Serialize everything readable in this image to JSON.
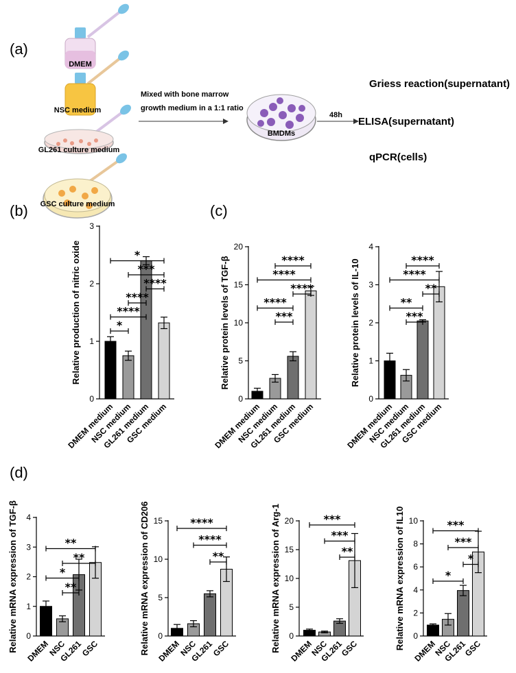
{
  "panels": {
    "a": "(a)",
    "b": "(b)",
    "c": "(c)",
    "d": "(d)"
  },
  "schematic": {
    "media": [
      "DMEM",
      "NSC medium",
      "GL261 culture medium",
      "GSC culture medium"
    ],
    "mix_line1": "Mixed with bone marrow",
    "mix_line2": "growth medium in a 1:1 ratio",
    "cells": "BMDMs",
    "time": "48h",
    "outputs": [
      "Griess reaction(supernatant)",
      "ELISA(supernatant)",
      "qPCR(cells)"
    ]
  },
  "colors": {
    "bar1": "#000000",
    "bar2": "#9a9a9a",
    "bar3": "#6f6f6f",
    "bar4": "#d4d4d4"
  },
  "chart_data": [
    {
      "type": "bar",
      "panel": "b",
      "categories": [
        "DMEM medium",
        "NSC medium",
        "GL261 medium",
        "GSC medium"
      ],
      "values": [
        1.0,
        0.75,
        2.4,
        1.32
      ],
      "errors": [
        0.08,
        0.08,
        0.07,
        0.1
      ],
      "ylabel": "Relative production of nitric oxide",
      "ylim": [
        0,
        3
      ],
      "yticks": [
        "0",
        "1",
        "2",
        "3"
      ],
      "significance": [
        {
          "a": 0,
          "b": 1,
          "label": "*"
        },
        {
          "a": 0,
          "b": 2,
          "label": "****"
        },
        {
          "a": 1,
          "b": 2,
          "label": "****"
        },
        {
          "a": 2,
          "b": 3,
          "label": "****"
        },
        {
          "a": 1,
          "b": 3,
          "label": "***"
        },
        {
          "a": 0,
          "b": 3,
          "label": "*"
        }
      ]
    },
    {
      "type": "bar",
      "panel": "c",
      "categories": [
        "DMEM medium",
        "NSC medium",
        "GL261 medium",
        "GSC medium"
      ],
      "values": [
        1.0,
        2.7,
        5.6,
        14.2
      ],
      "errors": [
        0.4,
        0.5,
        0.6,
        0.6
      ],
      "ylabel": "Relative protein levels of TGF-β",
      "ylim": [
        0,
        20
      ],
      "yticks": [
        "0",
        "5",
        "10",
        "15",
        "20"
      ],
      "significance": [
        {
          "a": 1,
          "b": 2,
          "label": "***"
        },
        {
          "a": 0,
          "b": 2,
          "label": "****"
        },
        {
          "a": 2,
          "b": 3,
          "label": "****"
        },
        {
          "a": 0,
          "b": 3,
          "label": "****"
        },
        {
          "a": 1,
          "b": 3,
          "label": "****"
        }
      ]
    },
    {
      "type": "bar",
      "panel": "c",
      "categories": [
        "DMEM medium",
        "NSC medium",
        "GL261 medium",
        "GSC medium"
      ],
      "values": [
        1.0,
        0.62,
        2.05,
        2.95
      ],
      "errors": [
        0.2,
        0.15,
        0.03,
        0.4
      ],
      "ylabel": "Relative protein levels of IL-10",
      "ylim": [
        0,
        4
      ],
      "yticks": [
        "0",
        "1",
        "2",
        "3",
        "4"
      ],
      "significance": [
        {
          "a": 1,
          "b": 2,
          "label": "***"
        },
        {
          "a": 0,
          "b": 2,
          "label": "**"
        },
        {
          "a": 2,
          "b": 3,
          "label": "**"
        },
        {
          "a": 0,
          "b": 3,
          "label": "****"
        },
        {
          "a": 1,
          "b": 3,
          "label": "****"
        }
      ]
    },
    {
      "type": "bar",
      "panel": "d",
      "categories": [
        "DMEM",
        "NSC",
        "GL261",
        "GSC"
      ],
      "values": [
        1.0,
        0.58,
        2.07,
        2.48
      ],
      "errors": [
        0.18,
        0.1,
        0.52,
        0.53
      ],
      "ylabel": "Relative mRNA expression of TGF-β",
      "ylim": [
        0,
        4
      ],
      "yticks": [
        "0",
        "1",
        "2",
        "3",
        "4"
      ],
      "significance": [
        {
          "a": 1,
          "b": 2,
          "label": "**"
        },
        {
          "a": 0,
          "b": 2,
          "label": "*"
        },
        {
          "a": 1,
          "b": 3,
          "label": "**"
        },
        {
          "a": 0,
          "b": 3,
          "label": "**"
        }
      ]
    },
    {
      "type": "bar",
      "panel": "d",
      "categories": [
        "DMEM",
        "NSC",
        "GL261",
        "GSC"
      ],
      "values": [
        1.0,
        1.6,
        5.5,
        8.7
      ],
      "errors": [
        0.5,
        0.4,
        0.4,
        1.6
      ],
      "ylabel": "Relative mRNA expression of CD206",
      "ylim": [
        0,
        15
      ],
      "yticks": [
        "0",
        "5",
        "10",
        "15"
      ],
      "significance": [
        {
          "a": 2,
          "b": 3,
          "label": "**"
        },
        {
          "a": 1,
          "b": 3,
          "label": "****"
        },
        {
          "a": 0,
          "b": 3,
          "label": "****"
        }
      ]
    },
    {
      "type": "bar",
      "panel": "d",
      "categories": [
        "DMEM",
        "NSC",
        "GL261",
        "GSC"
      ],
      "values": [
        1.0,
        0.7,
        2.6,
        13.1
      ],
      "errors": [
        0.2,
        0.15,
        0.4,
        4.7
      ],
      "ylabel": "Relative mRNA expression of Arg-1",
      "ylim": [
        0,
        20
      ],
      "yticks": [
        "0",
        "5",
        "10",
        "15",
        "20"
      ],
      "significance": [
        {
          "a": 2,
          "b": 3,
          "label": "**"
        },
        {
          "a": 1,
          "b": 3,
          "label": "***"
        },
        {
          "a": 0,
          "b": 3,
          "label": "***"
        }
      ]
    },
    {
      "type": "bar",
      "panel": "d",
      "categories": [
        "DMEM",
        "NSC",
        "GL261",
        "GSC"
      ],
      "values": [
        0.95,
        1.45,
        3.95,
        7.3
      ],
      "errors": [
        0.1,
        0.5,
        0.45,
        1.8
      ],
      "ylabel": "Relative mRNA expression of IL10",
      "ylim": [
        0,
        10
      ],
      "yticks": [
        "0",
        "2",
        "4",
        "6",
        "8",
        "10"
      ],
      "significance": [
        {
          "a": 0,
          "b": 2,
          "label": "*"
        },
        {
          "a": 2,
          "b": 3,
          "label": "*"
        },
        {
          "a": 1,
          "b": 3,
          "label": "***"
        },
        {
          "a": 0,
          "b": 3,
          "label": "***"
        }
      ]
    }
  ]
}
